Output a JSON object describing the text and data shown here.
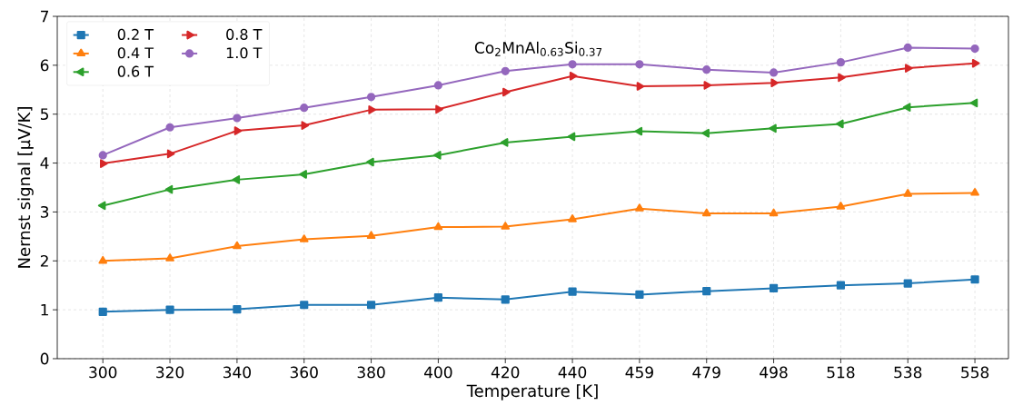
{
  "chart_data": {
    "type": "line",
    "xlabel": "Temperature [K]",
    "ylabel": "Nernst signal [µV/K]",
    "annotations": [
      "Co$_{2}$MnAl$_{0.63}$Si$_{0.37}$"
    ],
    "categories": [
      "300",
      "320",
      "340",
      "360",
      "380",
      "400",
      "420",
      "440",
      "459",
      "479",
      "498",
      "518",
      "538",
      "558"
    ],
    "ylim": [
      0,
      7
    ],
    "yticks": [
      0,
      1,
      2,
      3,
      4,
      5,
      6,
      7
    ],
    "grid": true,
    "legend": "top left",
    "line_style": "solid",
    "series": [
      {
        "name": "0.2 T",
        "color": "#1f77b4",
        "marker": "square",
        "values": [
          0.96,
          1.0,
          1.01,
          1.1,
          1.1,
          1.25,
          1.21,
          1.37,
          1.31,
          1.38,
          1.44,
          1.5,
          1.54,
          1.62
        ]
      },
      {
        "name": "0.4 T",
        "color": "#ff7f0e",
        "marker": "triangle",
        "values": [
          2.0,
          2.05,
          2.3,
          2.44,
          2.51,
          2.69,
          2.7,
          2.85,
          3.07,
          2.97,
          2.97,
          3.11,
          3.37,
          3.39
        ]
      },
      {
        "name": "0.6 T",
        "color": "#2ca02c",
        "marker": "triangle-left",
        "values": [
          3.13,
          3.46,
          3.66,
          3.77,
          4.02,
          4.16,
          4.42,
          4.54,
          4.65,
          4.61,
          4.71,
          4.8,
          5.14,
          5.23
        ]
      },
      {
        "name": "0.8 T",
        "color": "#d62728",
        "marker": "triangle-right",
        "values": [
          3.99,
          4.19,
          4.66,
          4.77,
          5.09,
          5.1,
          5.45,
          5.78,
          5.57,
          5.59,
          5.64,
          5.75,
          5.94,
          6.04
        ]
      },
      {
        "name": "1.0 T",
        "color": "#9467bd",
        "marker": "circle",
        "values": [
          4.16,
          4.73,
          4.92,
          5.13,
          5.35,
          5.59,
          5.88,
          6.02,
          6.02,
          5.91,
          5.85,
          6.06,
          6.36,
          6.34
        ]
      }
    ]
  }
}
